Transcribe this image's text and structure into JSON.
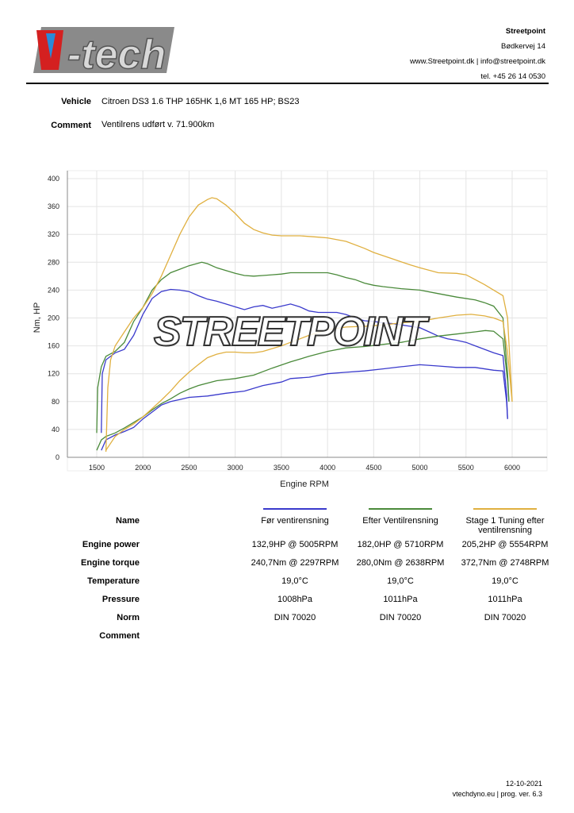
{
  "header": {
    "logo_text": "V-tech",
    "company": "Streetpoint",
    "address": "Bødkervej 14",
    "web": "www.Streetpoint.dk | info@streetpoint.dk",
    "phone": "tel. +45 26 14 0530"
  },
  "vehicle": {
    "label": "Vehicle",
    "value": "Citroen DS3 1.6 THP 165HK 1,6 MT 165 HP; BS23"
  },
  "comment": {
    "label": "Comment",
    "value": "Ventilrens udført v. 71.900km"
  },
  "watermark": "STREETPOINT",
  "chart_data": {
    "type": "line",
    "xlabel": "Engine RPM",
    "ylabel": "Nm, HP",
    "xlim": [
      1300,
      6400
    ],
    "ylim": [
      0,
      400
    ],
    "grid": true,
    "xticks": [
      1500,
      2000,
      2500,
      3000,
      3500,
      4000,
      4500,
      5000,
      5500,
      6000
    ],
    "yticks": [
      0,
      40,
      80,
      120,
      160,
      200,
      240,
      280,
      320,
      360,
      400
    ],
    "series": [
      {
        "name": "Før ventirensning",
        "kind": "torque",
        "color": "#3a3acc",
        "points": [
          [
            1550,
            35
          ],
          [
            1560,
            120
          ],
          [
            1600,
            140
          ],
          [
            1700,
            150
          ],
          [
            1800,
            155
          ],
          [
            1900,
            175
          ],
          [
            2000,
            205
          ],
          [
            2100,
            228
          ],
          [
            2200,
            238
          ],
          [
            2300,
            241
          ],
          [
            2400,
            240
          ],
          [
            2500,
            238
          ],
          [
            2600,
            232
          ],
          [
            2700,
            227
          ],
          [
            2800,
            224
          ],
          [
            2900,
            220
          ],
          [
            3000,
            216
          ],
          [
            3100,
            212
          ],
          [
            3200,
            216
          ],
          [
            3300,
            218
          ],
          [
            3400,
            214
          ],
          [
            3500,
            217
          ],
          [
            3600,
            220
          ],
          [
            3700,
            216
          ],
          [
            3800,
            210
          ],
          [
            3900,
            208
          ],
          [
            4000,
            208
          ],
          [
            4100,
            208
          ],
          [
            4200,
            205
          ],
          [
            4300,
            200
          ],
          [
            4400,
            196
          ],
          [
            4500,
            195
          ],
          [
            4600,
            193
          ],
          [
            4700,
            192
          ],
          [
            4800,
            190
          ],
          [
            4900,
            188
          ],
          [
            5000,
            186
          ],
          [
            5100,
            180
          ],
          [
            5200,
            174
          ],
          [
            5300,
            170
          ],
          [
            5400,
            168
          ],
          [
            5500,
            165
          ],
          [
            5600,
            160
          ],
          [
            5700,
            155
          ],
          [
            5800,
            150
          ],
          [
            5900,
            146
          ],
          [
            5940,
            90
          ],
          [
            5950,
            55
          ]
        ]
      },
      {
        "name": "Før ventirensning",
        "kind": "power",
        "color": "#3a3acc",
        "points": [
          [
            1550,
            10
          ],
          [
            1600,
            25
          ],
          [
            1700,
            32
          ],
          [
            1800,
            37
          ],
          [
            1900,
            43
          ],
          [
            2000,
            55
          ],
          [
            2100,
            65
          ],
          [
            2200,
            75
          ],
          [
            2300,
            80
          ],
          [
            2400,
            83
          ],
          [
            2500,
            86
          ],
          [
            2700,
            88
          ],
          [
            2900,
            92
          ],
          [
            3100,
            95
          ],
          [
            3300,
            103
          ],
          [
            3500,
            108
          ],
          [
            3600,
            113
          ],
          [
            3800,
            115
          ],
          [
            4000,
            120
          ],
          [
            4200,
            122
          ],
          [
            4400,
            124
          ],
          [
            4600,
            127
          ],
          [
            4800,
            130
          ],
          [
            5000,
            132.9
          ],
          [
            5200,
            131
          ],
          [
            5400,
            129
          ],
          [
            5600,
            129
          ],
          [
            5800,
            125
          ],
          [
            5900,
            124
          ],
          [
            5940,
            80
          ],
          [
            5950,
            55
          ]
        ]
      },
      {
        "name": "Efter Ventilrensning",
        "kind": "torque",
        "color": "#4a8a3a",
        "points": [
          [
            1500,
            35
          ],
          [
            1510,
            100
          ],
          [
            1550,
            130
          ],
          [
            1600,
            145
          ],
          [
            1700,
            152
          ],
          [
            1800,
            165
          ],
          [
            1900,
            195
          ],
          [
            2000,
            215
          ],
          [
            2100,
            240
          ],
          [
            2200,
            255
          ],
          [
            2300,
            265
          ],
          [
            2400,
            270
          ],
          [
            2500,
            275
          ],
          [
            2638,
            280
          ],
          [
            2700,
            278
          ],
          [
            2800,
            272
          ],
          [
            2900,
            268
          ],
          [
            3000,
            264
          ],
          [
            3100,
            261
          ],
          [
            3200,
            260
          ],
          [
            3300,
            261
          ],
          [
            3400,
            262
          ],
          [
            3500,
            263
          ],
          [
            3600,
            265
          ],
          [
            4000,
            265
          ],
          [
            4100,
            262
          ],
          [
            4200,
            258
          ],
          [
            4300,
            255
          ],
          [
            4400,
            250
          ],
          [
            4500,
            247
          ],
          [
            4600,
            245
          ],
          [
            4800,
            242
          ],
          [
            5000,
            240
          ],
          [
            5200,
            235
          ],
          [
            5400,
            230
          ],
          [
            5600,
            226
          ],
          [
            5700,
            222
          ],
          [
            5800,
            217
          ],
          [
            5900,
            200
          ],
          [
            5950,
            120
          ],
          [
            5965,
            80
          ]
        ]
      },
      {
        "name": "Efter Ventilrensning",
        "kind": "power",
        "color": "#4a8a3a",
        "points": [
          [
            1500,
            10
          ],
          [
            1550,
            25
          ],
          [
            1600,
            30
          ],
          [
            1700,
            35
          ],
          [
            1800,
            42
          ],
          [
            1900,
            50
          ],
          [
            2000,
            58
          ],
          [
            2100,
            68
          ],
          [
            2200,
            77
          ],
          [
            2300,
            84
          ],
          [
            2400,
            92
          ],
          [
            2500,
            98
          ],
          [
            2600,
            103
          ],
          [
            2800,
            110
          ],
          [
            3000,
            113
          ],
          [
            3200,
            118
          ],
          [
            3400,
            128
          ],
          [
            3600,
            137
          ],
          [
            3800,
            145
          ],
          [
            4000,
            152
          ],
          [
            4200,
            157
          ],
          [
            4400,
            159
          ],
          [
            4600,
            162
          ],
          [
            4800,
            165
          ],
          [
            5000,
            170
          ],
          [
            5200,
            174
          ],
          [
            5400,
            177
          ],
          [
            5600,
            180
          ],
          [
            5710,
            182
          ],
          [
            5800,
            181
          ],
          [
            5900,
            170
          ],
          [
            5950,
            110
          ],
          [
            5965,
            80
          ]
        ]
      },
      {
        "name": "Stage 1 Tuning efter ventilrensning",
        "kind": "torque",
        "color": "#e0b040",
        "points": [
          [
            1600,
            8
          ],
          [
            1620,
            100
          ],
          [
            1650,
            140
          ],
          [
            1700,
            160
          ],
          [
            1800,
            180
          ],
          [
            1900,
            200
          ],
          [
            2000,
            215
          ],
          [
            2100,
            235
          ],
          [
            2200,
            260
          ],
          [
            2300,
            290
          ],
          [
            2400,
            320
          ],
          [
            2500,
            345
          ],
          [
            2600,
            362
          ],
          [
            2700,
            370
          ],
          [
            2748,
            372.7
          ],
          [
            2800,
            371
          ],
          [
            2900,
            362
          ],
          [
            3000,
            350
          ],
          [
            3100,
            336
          ],
          [
            3200,
            327
          ],
          [
            3300,
            322
          ],
          [
            3400,
            319
          ],
          [
            3500,
            318
          ],
          [
            3700,
            318
          ],
          [
            3900,
            316
          ],
          [
            4000,
            315
          ],
          [
            4200,
            310
          ],
          [
            4400,
            300
          ],
          [
            4500,
            294
          ],
          [
            4700,
            285
          ],
          [
            4900,
            276
          ],
          [
            5000,
            272
          ],
          [
            5200,
            265
          ],
          [
            5400,
            264
          ],
          [
            5500,
            262
          ],
          [
            5600,
            255
          ],
          [
            5700,
            248
          ],
          [
            5800,
            240
          ],
          [
            5900,
            232
          ],
          [
            5950,
            200
          ],
          [
            6000,
            80
          ]
        ]
      },
      {
        "name": "Stage 1 Tuning efter ventilrensning",
        "kind": "power",
        "color": "#e0b040",
        "points": [
          [
            1600,
            10
          ],
          [
            1700,
            30
          ],
          [
            1800,
            40
          ],
          [
            1900,
            48
          ],
          [
            2000,
            58
          ],
          [
            2100,
            70
          ],
          [
            2200,
            82
          ],
          [
            2300,
            95
          ],
          [
            2400,
            110
          ],
          [
            2500,
            122
          ],
          [
            2600,
            133
          ],
          [
            2700,
            143
          ],
          [
            2800,
            148
          ],
          [
            2900,
            151
          ],
          [
            3000,
            151
          ],
          [
            3100,
            150
          ],
          [
            3200,
            150
          ],
          [
            3300,
            152
          ],
          [
            3400,
            156
          ],
          [
            3500,
            160
          ],
          [
            3600,
            165
          ],
          [
            3700,
            170
          ],
          [
            3800,
            175
          ],
          [
            3900,
            179
          ],
          [
            4000,
            183
          ],
          [
            4200,
            187
          ],
          [
            4400,
            188
          ],
          [
            4600,
            190
          ],
          [
            4800,
            193
          ],
          [
            5000,
            195
          ],
          [
            5200,
            200
          ],
          [
            5400,
            204
          ],
          [
            5554,
            205.2
          ],
          [
            5700,
            203
          ],
          [
            5800,
            200
          ],
          [
            5900,
            195
          ],
          [
            5950,
            150
          ],
          [
            6000,
            80
          ]
        ]
      }
    ]
  },
  "table": {
    "labels": {
      "name": "Name",
      "power": "Engine power",
      "torque": "Engine torque",
      "temp": "Temperature",
      "pressure": "Pressure",
      "norm": "Norm",
      "comment": "Comment"
    },
    "runs": [
      {
        "name": "Før ventirensning",
        "color": "#3a3acc",
        "power": "132,9HP @ 5005RPM",
        "torque": "240,7Nm @ 2297RPM",
        "temp": "19,0°C",
        "pressure": "1008hPa",
        "norm": "DIN 70020"
      },
      {
        "name": "Efter Ventilrensning",
        "color": "#4a8a3a",
        "power": "182,0HP @ 5710RPM",
        "torque": "280,0Nm @ 2638RPM",
        "temp": "19,0°C",
        "pressure": "1011hPa",
        "norm": "DIN 70020"
      },
      {
        "name": "Stage 1 Tuning efter ventilrensning",
        "color": "#e0b040",
        "power": "205,2HP @ 5554RPM",
        "torque": "372,7Nm @ 2748RPM",
        "temp": "19,0°C",
        "pressure": "1011hPa",
        "norm": "DIN 70020"
      }
    ]
  },
  "footer": {
    "date": "12-10-2021",
    "program": "vtechdyno.eu | prog. ver. 6.3"
  }
}
